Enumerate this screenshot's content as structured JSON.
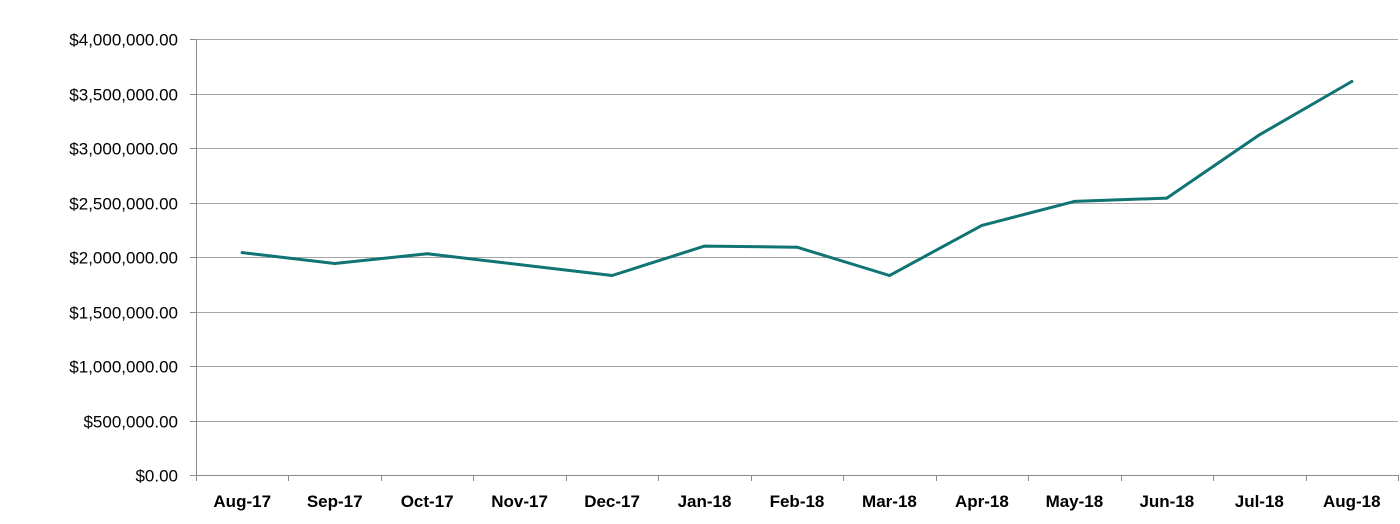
{
  "chart_data": {
    "type": "line",
    "categories": [
      "Aug-17",
      "Sep-17",
      "Oct-17",
      "Nov-17",
      "Dec-17",
      "Jan-18",
      "Feb-18",
      "Mar-18",
      "Apr-18",
      "May-18",
      "Jun-18",
      "Jul-18",
      "Aug-18"
    ],
    "series": [
      {
        "values": [
          2040000,
          1940000,
          2030000,
          1930000,
          1830000,
          2100000,
          2090000,
          1830000,
          2290000,
          2510000,
          2540000,
          3120000,
          3610000
        ],
        "color": "#107474"
      }
    ],
    "ylim": [
      0,
      4000000
    ],
    "yticks": [
      0,
      500000,
      1000000,
      1500000,
      2000000,
      2500000,
      3000000,
      3500000,
      4000000
    ],
    "ytick_labels": [
      "$0.00",
      "$500,000.00",
      "$1,000,000.00",
      "$1,500,000.00",
      "$2,000,000.00",
      "$2,500,000.00",
      "$3,000,000.00",
      "$3,500,000.00",
      "$4,000,000.00"
    ],
    "grid": true,
    "legend": "none",
    "gridline_color": "#a6a6a6"
  }
}
